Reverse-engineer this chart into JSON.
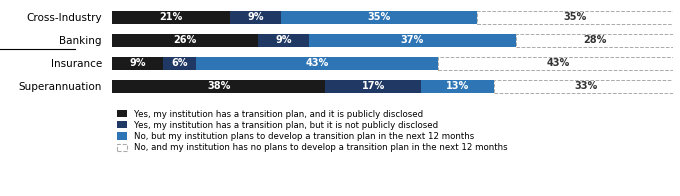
{
  "categories": [
    "Cross-Industry",
    "Banking",
    "Insurance",
    "Superannuation"
  ],
  "series": [
    {
      "label": "Yes, my institution has a transition plan, and it is publicly disclosed",
      "color": "#1a1a1a",
      "values": [
        21,
        26,
        9,
        38
      ]
    },
    {
      "label": "Yes, my institution has a transition plan, but it is not publicly disclosed",
      "color": "#1f3864",
      "values": [
        9,
        9,
        6,
        17
      ]
    },
    {
      "label": "No, but my institution plans to develop a transition plan in the next 12 months",
      "color": "#2e75b6",
      "values": [
        35,
        37,
        43,
        13
      ]
    },
    {
      "label": "No, and my institution has no plans to develop a transition plan in the next 12 months",
      "color": "#ffffff",
      "values": [
        35,
        28,
        43,
        33
      ]
    }
  ],
  "underline_category": "Cross-Industry",
  "bar_height": 0.55,
  "xlim": [
    0,
    100
  ],
  "legend_fontsize": 6.2,
  "label_fontsize": 7.0,
  "category_fontsize": 7.5,
  "dashed_color": "#aaaaaa"
}
